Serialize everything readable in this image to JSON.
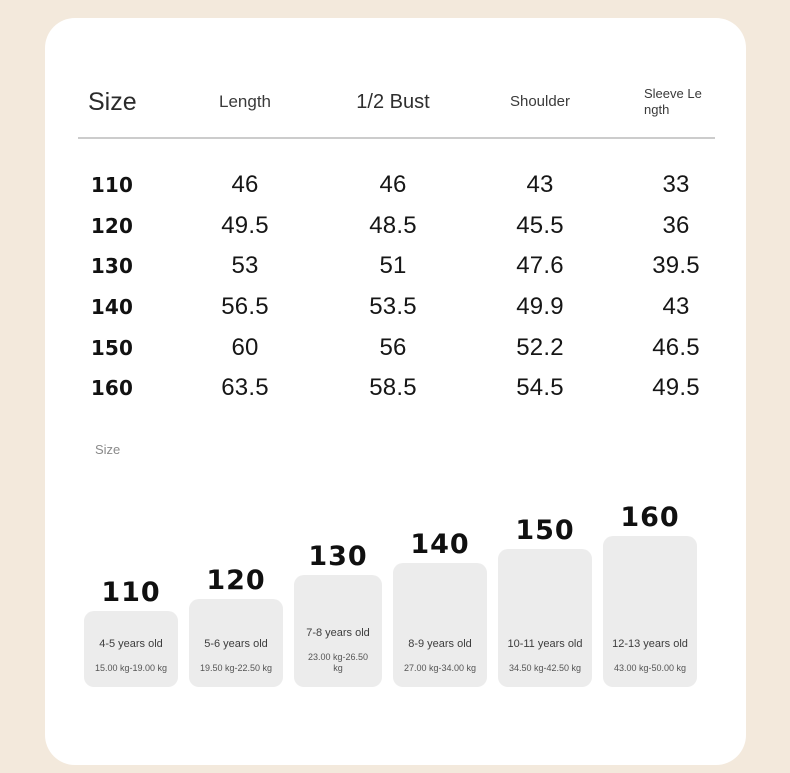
{
  "colors": {
    "page_bg": "#f3e9dc",
    "card_bg": "#ffffff",
    "bar_fill": "#ececec",
    "divider": "#cccccc",
    "text_primary": "#161616",
    "text_muted": "#8a8a8a"
  },
  "chart_label": "Size",
  "chart_data": [
    {
      "type": "table",
      "title": "Size",
      "columns": [
        "Size",
        "Length",
        "1/2 Bust",
        "Shoulder",
        "Sleeve Length"
      ],
      "rows": [
        [
          "110",
          "46",
          "46",
          "43",
          "33"
        ],
        [
          "120",
          "49.5",
          "48.5",
          "45.5",
          "36"
        ],
        [
          "130",
          "53",
          "51",
          "47.6",
          "39.5"
        ],
        [
          "140",
          "56.5",
          "53.5",
          "49.9",
          "43"
        ],
        [
          "150",
          "60",
          "56",
          "52.2",
          "46.5"
        ],
        [
          "160",
          "63.5",
          "58.5",
          "54.5",
          "49.5"
        ]
      ]
    },
    {
      "type": "bar",
      "title": "Size",
      "categories": [
        "110",
        "120",
        "130",
        "140",
        "150",
        "160"
      ],
      "values": [
        110,
        120,
        130,
        140,
        150,
        160
      ],
      "annotations": [
        {
          "age": "4-5 years old",
          "weight": "15.00 kg-19.00 kg"
        },
        {
          "age": "5-6 years old",
          "weight": "19.50 kg-22.50 kg"
        },
        {
          "age": "7-8 years old",
          "weight": "23.00 kg-26.50 kg"
        },
        {
          "age": "8-9 years old",
          "weight": "27.00 kg-34.00 kg"
        },
        {
          "age": "10-11 years old",
          "weight": "34.50 kg-42.50 kg"
        },
        {
          "age": "12-13 years old",
          "weight": "43.00 kg-50.00 kg"
        }
      ],
      "legend": false,
      "grid": false,
      "bar_alignment": "bottom"
    }
  ]
}
